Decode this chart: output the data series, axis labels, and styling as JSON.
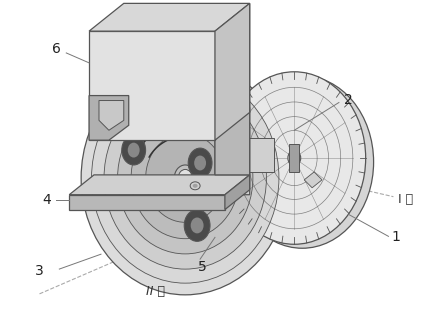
{
  "bg_color": "#ffffff",
  "line_color": "#555555",
  "dark_line": "#333333",
  "face_light": "#e8e8e8",
  "face_mid": "#d0d0d0",
  "face_dark": "#b8b8b8",
  "face_darker": "#a0a0a0",
  "label_fontsize": 10,
  "axis_fontsize": 9,
  "figsize": [
    4.25,
    3.23
  ],
  "dpi": 100
}
